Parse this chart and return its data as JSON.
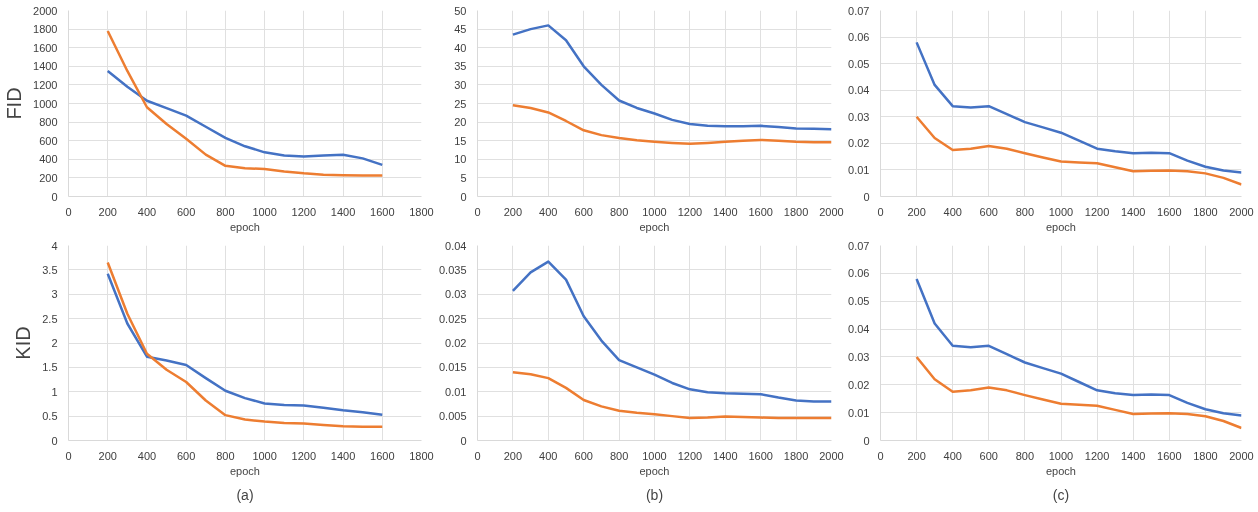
{
  "chart_data": [
    {
      "type": "line",
      "ylabel": "FID",
      "xlabel": "epoch",
      "x": [
        200,
        300,
        400,
        500,
        600,
        700,
        800,
        900,
        1000,
        1100,
        1200,
        1300,
        1400,
        1500,
        1600
      ],
      "xlim": [
        0,
        1800
      ],
      "xticks": [
        0,
        200,
        400,
        600,
        800,
        1000,
        1200,
        1400,
        1600,
        1800
      ],
      "ylim": [
        0,
        2000
      ],
      "yticks": [
        0,
        200,
        400,
        600,
        800,
        1000,
        1200,
        1400,
        1600,
        1800,
        2000
      ],
      "grid": true,
      "series": [
        {
          "color": "#4472c4",
          "values": [
            1350,
            1180,
            1030,
            950,
            870,
            750,
            630,
            540,
            475,
            440,
            430,
            440,
            450,
            410,
            340
          ]
        },
        {
          "color": "#ed7d31",
          "values": [
            1780,
            1350,
            960,
            780,
            620,
            450,
            330,
            305,
            295,
            270,
            250,
            235,
            228,
            225,
            225
          ]
        }
      ]
    },
    {
      "type": "line",
      "xlabel": "epoch",
      "x": [
        200,
        300,
        400,
        500,
        600,
        700,
        800,
        900,
        1000,
        1100,
        1200,
        1300,
        1400,
        1500,
        1600,
        1700,
        1800,
        1900,
        2000
      ],
      "xlim": [
        0,
        2000
      ],
      "xticks": [
        0,
        200,
        400,
        600,
        800,
        1000,
        1200,
        1400,
        1600,
        1800,
        2000
      ],
      "ylim": [
        0,
        50
      ],
      "yticks": [
        0,
        5,
        10,
        15,
        20,
        25,
        30,
        35,
        40,
        45,
        50
      ],
      "grid": true,
      "series": [
        {
          "color": "#4472c4",
          "values": [
            43.5,
            45,
            46,
            42,
            35,
            30,
            25.8,
            23.8,
            22.3,
            20.6,
            19.5,
            19,
            18.9,
            18.9,
            19,
            18.7,
            18.3,
            18.2,
            18.1
          ]
        },
        {
          "color": "#ed7d31",
          "values": [
            24.5,
            23.8,
            22.6,
            20.3,
            17.8,
            16.5,
            15.7,
            15.1,
            14.7,
            14.4,
            14.2,
            14.4,
            14.7,
            15,
            15.2,
            15,
            14.7,
            14.6,
            14.6
          ]
        }
      ]
    },
    {
      "type": "line",
      "xlabel": "epoch",
      "x": [
        200,
        300,
        400,
        500,
        600,
        700,
        800,
        900,
        1000,
        1100,
        1200,
        1300,
        1400,
        1500,
        1600,
        1700,
        1800,
        1900,
        2000
      ],
      "xlim": [
        0,
        2000
      ],
      "xticks": [
        0,
        200,
        400,
        600,
        800,
        1000,
        1200,
        1400,
        1600,
        1800,
        2000
      ],
      "ylim": [
        0,
        0.07
      ],
      "yticks": [
        0,
        0.01,
        0.02,
        0.03,
        0.04,
        0.05,
        0.06,
        0.07
      ],
      "grid": true,
      "series": [
        {
          "color": "#4472c4",
          "values": [
            0.058,
            0.042,
            0.034,
            0.0335,
            0.034,
            0.031,
            0.028,
            0.026,
            0.024,
            0.021,
            0.018,
            0.017,
            0.0163,
            0.0165,
            0.0163,
            0.0135,
            0.0112,
            0.0098,
            0.009
          ]
        },
        {
          "color": "#ed7d31",
          "values": [
            0.03,
            0.022,
            0.0175,
            0.018,
            0.019,
            0.018,
            0.0163,
            0.0147,
            0.0132,
            0.0128,
            0.0125,
            0.011,
            0.0095,
            0.0097,
            0.0098,
            0.0095,
            0.0087,
            0.007,
            0.0045
          ]
        }
      ]
    },
    {
      "type": "line",
      "ylabel": "KID",
      "xlabel": "epoch",
      "annotations": [
        "(a)"
      ],
      "x": [
        200,
        300,
        400,
        500,
        600,
        700,
        800,
        900,
        1000,
        1100,
        1200,
        1300,
        1400,
        1500,
        1600
      ],
      "xlim": [
        0,
        1800
      ],
      "xticks": [
        0,
        200,
        400,
        600,
        800,
        1000,
        1200,
        1400,
        1600,
        1800
      ],
      "ylim": [
        0,
        4
      ],
      "yticks": [
        0,
        0.5,
        1,
        1.5,
        2,
        2.5,
        3,
        3.5,
        4
      ],
      "grid": true,
      "series": [
        {
          "color": "#4472c4",
          "values": [
            3.42,
            2.4,
            1.72,
            1.64,
            1.55,
            1.28,
            1.02,
            0.87,
            0.76,
            0.73,
            0.72,
            0.67,
            0.62,
            0.58,
            0.53
          ]
        },
        {
          "color": "#ed7d31",
          "values": [
            3.65,
            2.6,
            1.78,
            1.45,
            1.2,
            0.82,
            0.52,
            0.43,
            0.39,
            0.36,
            0.35,
            0.32,
            0.29,
            0.28,
            0.28
          ]
        }
      ]
    },
    {
      "type": "line",
      "xlabel": "epoch",
      "annotations": [
        "(b)"
      ],
      "x": [
        200,
        300,
        400,
        500,
        600,
        700,
        800,
        900,
        1000,
        1100,
        1200,
        1300,
        1400,
        1500,
        1600,
        1700,
        1800,
        1900,
        2000
      ],
      "xlim": [
        0,
        2000
      ],
      "xticks": [
        0,
        200,
        400,
        600,
        800,
        1000,
        1200,
        1400,
        1600,
        1800,
        2000
      ],
      "ylim": [
        0,
        0.04
      ],
      "yticks": [
        0,
        0.005,
        0.01,
        0.015,
        0.02,
        0.025,
        0.03,
        0.035,
        0.04
      ],
      "grid": true,
      "series": [
        {
          "color": "#4472c4",
          "values": [
            0.0307,
            0.0345,
            0.0367,
            0.033,
            0.0255,
            0.0205,
            0.0165,
            0.015,
            0.0135,
            0.0118,
            0.0105,
            0.0099,
            0.0097,
            0.0096,
            0.0095,
            0.0088,
            0.0082,
            0.008,
            0.008
          ]
        },
        {
          "color": "#ed7d31",
          "values": [
            0.014,
            0.0136,
            0.0128,
            0.0108,
            0.0083,
            0.007,
            0.0061,
            0.0057,
            0.0054,
            0.005,
            0.0046,
            0.0047,
            0.0049,
            0.0048,
            0.0047,
            0.0046,
            0.0046,
            0.0046,
            0.0046
          ]
        }
      ]
    },
    {
      "type": "line",
      "xlabel": "epoch",
      "annotations": [
        "(c)"
      ],
      "x": [
        200,
        300,
        400,
        500,
        600,
        700,
        800,
        900,
        1000,
        1100,
        1200,
        1300,
        1400,
        1500,
        1600,
        1700,
        1800,
        1900,
        2000
      ],
      "xlim": [
        0,
        2000
      ],
      "xticks": [
        0,
        200,
        400,
        600,
        800,
        1000,
        1200,
        1400,
        1600,
        1800,
        2000
      ],
      "ylim": [
        0,
        0.07
      ],
      "yticks": [
        0,
        0.01,
        0.02,
        0.03,
        0.04,
        0.05,
        0.06,
        0.07
      ],
      "grid": true,
      "series": [
        {
          "color": "#4472c4",
          "values": [
            0.058,
            0.042,
            0.034,
            0.0335,
            0.034,
            0.031,
            0.028,
            0.026,
            0.024,
            0.021,
            0.018,
            0.017,
            0.0163,
            0.0165,
            0.0163,
            0.0135,
            0.0112,
            0.0098,
            0.009
          ]
        },
        {
          "color": "#ed7d31",
          "values": [
            0.03,
            0.022,
            0.0175,
            0.018,
            0.019,
            0.018,
            0.0163,
            0.0147,
            0.0132,
            0.0128,
            0.0125,
            0.011,
            0.0095,
            0.0097,
            0.0098,
            0.0095,
            0.0087,
            0.007,
            0.0045
          ]
        }
      ]
    }
  ]
}
